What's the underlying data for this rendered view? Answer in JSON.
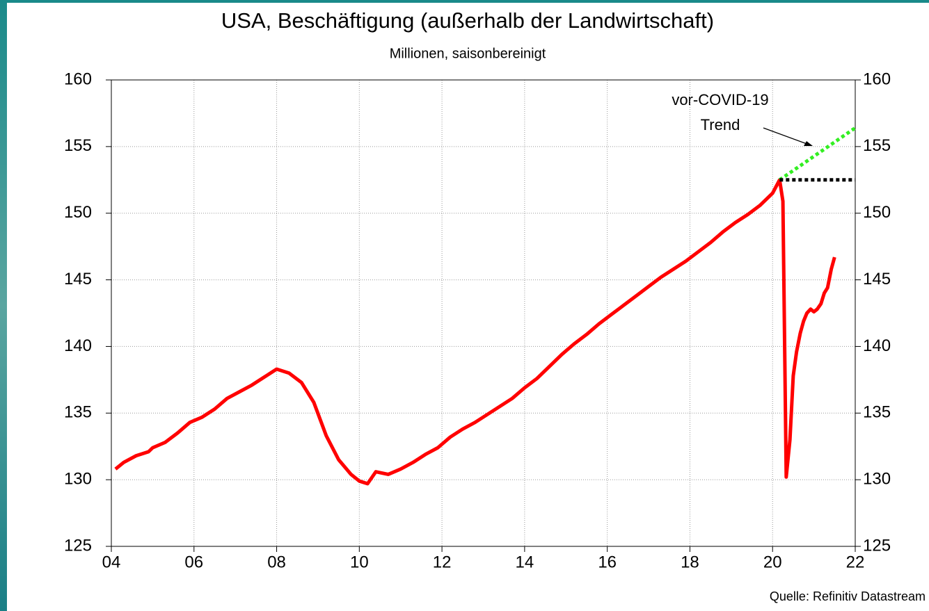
{
  "chart_data": {
    "type": "line",
    "title": "USA, Beschäftigung (außerhalb der Landwirtschaft)",
    "subtitle": "Millionen, saisonbereinigt",
    "annotations": [
      "vor-COVID-19",
      "Trend"
    ],
    "source": "Quelle: Refinitiv Datastream",
    "xlim": [
      2004,
      2022
    ],
    "xticks": [
      {
        "value": 2004,
        "label": "04"
      },
      {
        "value": 2006,
        "label": "06"
      },
      {
        "value": 2008,
        "label": "08"
      },
      {
        "value": 2010,
        "label": "10"
      },
      {
        "value": 2012,
        "label": "12"
      },
      {
        "value": 2014,
        "label": "14"
      },
      {
        "value": 2016,
        "label": "16"
      },
      {
        "value": 2018,
        "label": "18"
      },
      {
        "value": 2020,
        "label": "20"
      },
      {
        "value": 2022,
        "label": "22"
      }
    ],
    "ylim": [
      125,
      160
    ],
    "yticks": [
      125,
      130,
      135,
      140,
      145,
      150,
      155,
      160
    ],
    "y2lim": [
      125,
      160
    ],
    "y2ticks": [
      125,
      130,
      135,
      140,
      145,
      150,
      155,
      160
    ],
    "grid": true,
    "series": [
      {
        "color": "#ff0000",
        "style": "solid",
        "x": [
          2004.1,
          2004.3,
          2004.6,
          2004.9,
          2005.0,
          2005.3,
          2005.6,
          2005.9,
          2006.2,
          2006.5,
          2006.8,
          2007.1,
          2007.4,
          2007.7,
          2008.0,
          2008.3,
          2008.6,
          2008.9,
          2009.2,
          2009.5,
          2009.8,
          2010.0,
          2010.2,
          2010.4,
          2010.7,
          2011.0,
          2011.3,
          2011.6,
          2011.9,
          2012.2,
          2012.5,
          2012.8,
          2013.1,
          2013.4,
          2013.7,
          2014.0,
          2014.3,
          2014.6,
          2014.9,
          2015.2,
          2015.5,
          2015.8,
          2016.1,
          2016.4,
          2016.7,
          2017.0,
          2017.3,
          2017.6,
          2017.9,
          2018.2,
          2018.5,
          2018.8,
          2019.1,
          2019.4,
          2019.7,
          2020.0,
          2020.17,
          2020.25,
          2020.33,
          2020.42,
          2020.5,
          2020.58,
          2020.67,
          2020.75,
          2020.83,
          2020.92,
          2021.0,
          2021.08,
          2021.17,
          2021.25,
          2021.33,
          2021.42,
          2021.5
        ],
        "values": [
          130.8,
          131.3,
          131.8,
          132.1,
          132.4,
          132.8,
          133.5,
          134.3,
          134.7,
          135.3,
          136.1,
          136.6,
          137.1,
          137.7,
          138.3,
          138.0,
          137.3,
          135.8,
          133.3,
          131.5,
          130.4,
          129.9,
          129.7,
          130.6,
          130.4,
          130.8,
          131.3,
          131.9,
          132.4,
          133.2,
          133.8,
          134.3,
          134.9,
          135.5,
          136.1,
          136.9,
          137.6,
          138.5,
          139.4,
          140.2,
          140.9,
          141.7,
          142.4,
          143.1,
          143.8,
          144.5,
          145.2,
          145.8,
          146.4,
          147.1,
          147.8,
          148.6,
          149.3,
          149.9,
          150.6,
          151.5,
          152.5,
          150.9,
          130.2,
          133.0,
          137.8,
          139.6,
          141.0,
          141.9,
          142.5,
          142.8,
          142.6,
          142.8,
          143.2,
          144.0,
          144.4,
          145.8,
          146.7
        ]
      },
      {
        "color": "#33ee22",
        "style": "dotted",
        "x": [
          2020.17,
          2022
        ],
        "values": [
          152.5,
          156.4
        ]
      },
      {
        "color": "#000000",
        "style": "dotted",
        "x": [
          2020.17,
          2022
        ],
        "values": [
          152.5,
          152.5
        ]
      }
    ]
  }
}
